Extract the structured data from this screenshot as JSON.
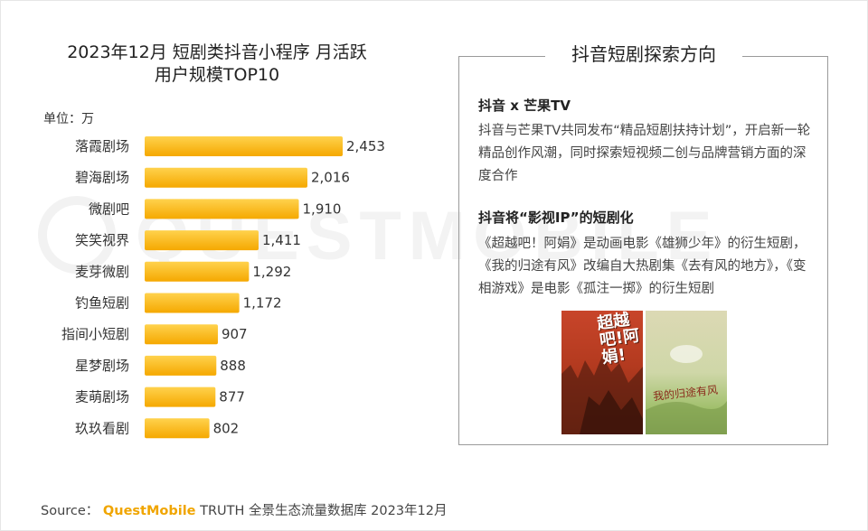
{
  "chart_data": {
    "type": "bar",
    "orientation": "horizontal",
    "title": "2023年12月 短剧类抖音小程序 月活跃用户规模TOP10",
    "title_lines": [
      "2023年12月 短剧类抖音小程序 月活跃",
      "用户规模TOP10"
    ],
    "unit_label": "单位：万",
    "categories": [
      "落霞剧场",
      "碧海剧场",
      "微剧吧",
      "笑笑视界",
      "麦芽微剧",
      "钓鱼短剧",
      "指间小短剧",
      "星梦剧场",
      "麦萌剧场",
      "玖玖看剧"
    ],
    "values": [
      2453,
      2016,
      1910,
      1411,
      1292,
      1172,
      907,
      888,
      877,
      802
    ],
    "value_labels": [
      "2,453",
      "2,016",
      "1,910",
      "1,411",
      "1,292",
      "1,172",
      "907",
      "888",
      "877",
      "802"
    ],
    "xlim": [
      0,
      2453
    ],
    "bar_color_start": "#ffd24d",
    "bar_color_end": "#f5a800",
    "grid": false,
    "legend": "none"
  },
  "panel": {
    "title": "抖音短剧探索方向",
    "section1_title": "抖音 x 芒果TV",
    "section1_body": "抖音与芒果TV共同发布“精品短剧扶持计划”，开启新一轮精品创作风潮，同时探索短视频二创与品牌营销方面的深度合作",
    "section2_title": "抖音将“影视IP”的短剧化",
    "section2_body": "《超越吧！阿娟》是动画电影《雄狮少年》的衍生短剧，《我的归途有风》改编自大热剧集《去有风的地方》，《变相游戏》是电影《孤注一掷》的衍生短剧",
    "poster1_text": "超越吧!阿娟!",
    "poster2_text": "我的归途有风"
  },
  "footer": {
    "source_label": "Source：",
    "brand": "QuestMobile",
    "source_text": "TRUTH 全景生态流量数据库 2023年12月"
  },
  "watermark_text": "QUESTMOBILE"
}
